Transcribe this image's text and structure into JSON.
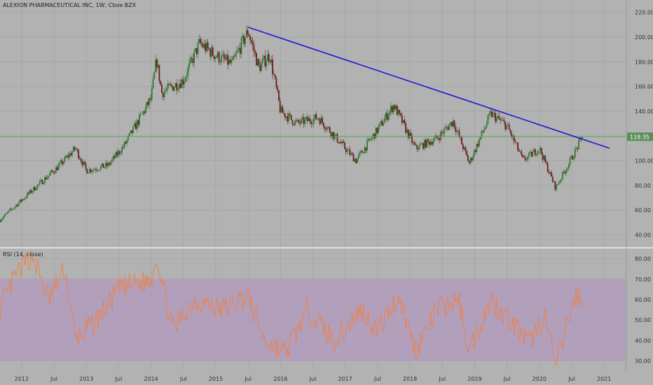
{
  "header": {
    "title": "ALEXION PHARMACEUTICAL INC, 1W, Cboe BZX"
  },
  "colors": {
    "background": "#b2b2b2",
    "grid": "#a6a6a6",
    "candle_up": "#2e7d32",
    "candle_down": "#6b1f1f",
    "trendline": "#1a1ad6",
    "price_line": "#55aa55",
    "price_badge": "#5a8f5a",
    "rsi_line": "#f08040",
    "rsi_band": "#b09bbd",
    "axis_text": "#333333"
  },
  "chart_data": [
    {
      "type": "candlestick",
      "title": "ALEXION PHARMACEUTICAL INC, 1W, Cboe BZX",
      "interval": "1W",
      "ylim": [
        30,
        230
      ],
      "y_ticks": [
        "220.00",
        "200.00",
        "180.00",
        "160.00",
        "140.00",
        "120.00",
        "100.00",
        "80.00",
        "60.00",
        "40.00"
      ],
      "x_ticks": [
        "2012",
        "Jul",
        "2013",
        "Jul",
        "2014",
        "Jul",
        "2015",
        "Jul",
        "2016",
        "Jul",
        "2017",
        "Jul",
        "2018",
        "Jul",
        "2019",
        "Jul",
        "2020",
        "Jul",
        "2021"
      ],
      "x_range": [
        "2011-09",
        "2021-05"
      ],
      "grid": true,
      "last_price": "119.35",
      "key_points": [
        {
          "date": "2011-09",
          "value": 52
        },
        {
          "date": "2012-02",
          "value": 72
        },
        {
          "date": "2012-08",
          "value": 96
        },
        {
          "date": "2012-11",
          "value": 110
        },
        {
          "date": "2013-01",
          "value": 92
        },
        {
          "date": "2013-05",
          "value": 96
        },
        {
          "date": "2013-08",
          "value": 112
        },
        {
          "date": "2014-01",
          "value": 150
        },
        {
          "date": "2014-02",
          "value": 182
        },
        {
          "date": "2014-03",
          "value": 155
        },
        {
          "date": "2014-07",
          "value": 165
        },
        {
          "date": "2014-10",
          "value": 195
        },
        {
          "date": "2015-01",
          "value": 185
        },
        {
          "date": "2015-04",
          "value": 178
        },
        {
          "date": "2015-07",
          "value": 205
        },
        {
          "date": "2015-09",
          "value": 175
        },
        {
          "date": "2015-11",
          "value": 186
        },
        {
          "date": "2016-01",
          "value": 140
        },
        {
          "date": "2016-04",
          "value": 130
        },
        {
          "date": "2016-08",
          "value": 135
        },
        {
          "date": "2016-11",
          "value": 120
        },
        {
          "date": "2017-03",
          "value": 100
        },
        {
          "date": "2017-07",
          "value": 125
        },
        {
          "date": "2017-10",
          "value": 145
        },
        {
          "date": "2018-02",
          "value": 110
        },
        {
          "date": "2018-06",
          "value": 118
        },
        {
          "date": "2018-09",
          "value": 132
        },
        {
          "date": "2018-12",
          "value": 98
        },
        {
          "date": "2019-04",
          "value": 138
        },
        {
          "date": "2019-07",
          "value": 128
        },
        {
          "date": "2019-10",
          "value": 100
        },
        {
          "date": "2020-01",
          "value": 110
        },
        {
          "date": "2020-04",
          "value": 78
        },
        {
          "date": "2020-07",
          "value": 102
        },
        {
          "date": "2020-09",
          "value": 119.35
        }
      ],
      "trendline": [
        {
          "date": "2015-07",
          "value": 208
        },
        {
          "date": "2021-02",
          "value": 110
        }
      ],
      "horizontal_line": 119.35
    },
    {
      "type": "line",
      "title": "RSI (14, close)",
      "ylim": [
        25,
        85
      ],
      "y_ticks": [
        "80.00",
        "70.00",
        "60.00",
        "50.00",
        "40.00",
        "30.00"
      ],
      "band": [
        30,
        70
      ],
      "x_ticks": [
        "2012",
        "Jul",
        "2013",
        "Jul",
        "2014",
        "Jul",
        "2015",
        "Jul",
        "2016",
        "Jul",
        "2017",
        "Jul",
        "2018",
        "Jul",
        "2019",
        "Jul",
        "2020",
        "Jul",
        "2021"
      ],
      "key_points": [
        {
          "date": "2011-09",
          "value": 55
        },
        {
          "date": "2011-12",
          "value": 72
        },
        {
          "date": "2012-03",
          "value": 82
        },
        {
          "date": "2012-06",
          "value": 60
        },
        {
          "date": "2012-09",
          "value": 75
        },
        {
          "date": "2012-11",
          "value": 40
        },
        {
          "date": "2013-03",
          "value": 50
        },
        {
          "date": "2013-07",
          "value": 65
        },
        {
          "date": "2014-01",
          "value": 70
        },
        {
          "date": "2014-02",
          "value": 82
        },
        {
          "date": "2014-05",
          "value": 45
        },
        {
          "date": "2014-09",
          "value": 60
        },
        {
          "date": "2015-02",
          "value": 55
        },
        {
          "date": "2015-07",
          "value": 62
        },
        {
          "date": "2015-10",
          "value": 40
        },
        {
          "date": "2016-02",
          "value": 34
        },
        {
          "date": "2016-06",
          "value": 55
        },
        {
          "date": "2016-11",
          "value": 40
        },
        {
          "date": "2017-04",
          "value": 55
        },
        {
          "date": "2017-07",
          "value": 45
        },
        {
          "date": "2017-11",
          "value": 62
        },
        {
          "date": "2018-02",
          "value": 35
        },
        {
          "date": "2018-06",
          "value": 55
        },
        {
          "date": "2018-10",
          "value": 60
        },
        {
          "date": "2018-12",
          "value": 35
        },
        {
          "date": "2019-04",
          "value": 60
        },
        {
          "date": "2019-07",
          "value": 52
        },
        {
          "date": "2019-11",
          "value": 38
        },
        {
          "date": "2020-02",
          "value": 52
        },
        {
          "date": "2020-04",
          "value": 27
        },
        {
          "date": "2020-07",
          "value": 56
        },
        {
          "date": "2020-08",
          "value": 63
        },
        {
          "date": "2020-09",
          "value": 56
        }
      ]
    }
  ]
}
